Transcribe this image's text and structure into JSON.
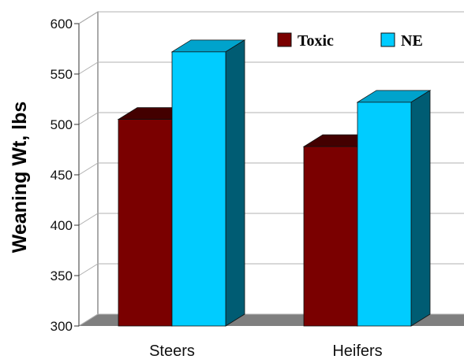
{
  "chart_data": {
    "type": "bar",
    "categories": [
      "Steers",
      "Heifers"
    ],
    "series": [
      {
        "name": "Toxic",
        "values": [
          505,
          478
        ],
        "color": "#7a0000"
      },
      {
        "name": "NE",
        "values": [
          572,
          522
        ],
        "color": "#00ccff"
      }
    ],
    "title": "",
    "xlabel": "",
    "ylabel": "Weaning Wt, lbs",
    "ylim": [
      300,
      600
    ],
    "yticks": [
      300,
      350,
      400,
      450,
      500,
      550,
      600
    ],
    "grid": true,
    "legend_position": "top-right",
    "style": "3d"
  }
}
